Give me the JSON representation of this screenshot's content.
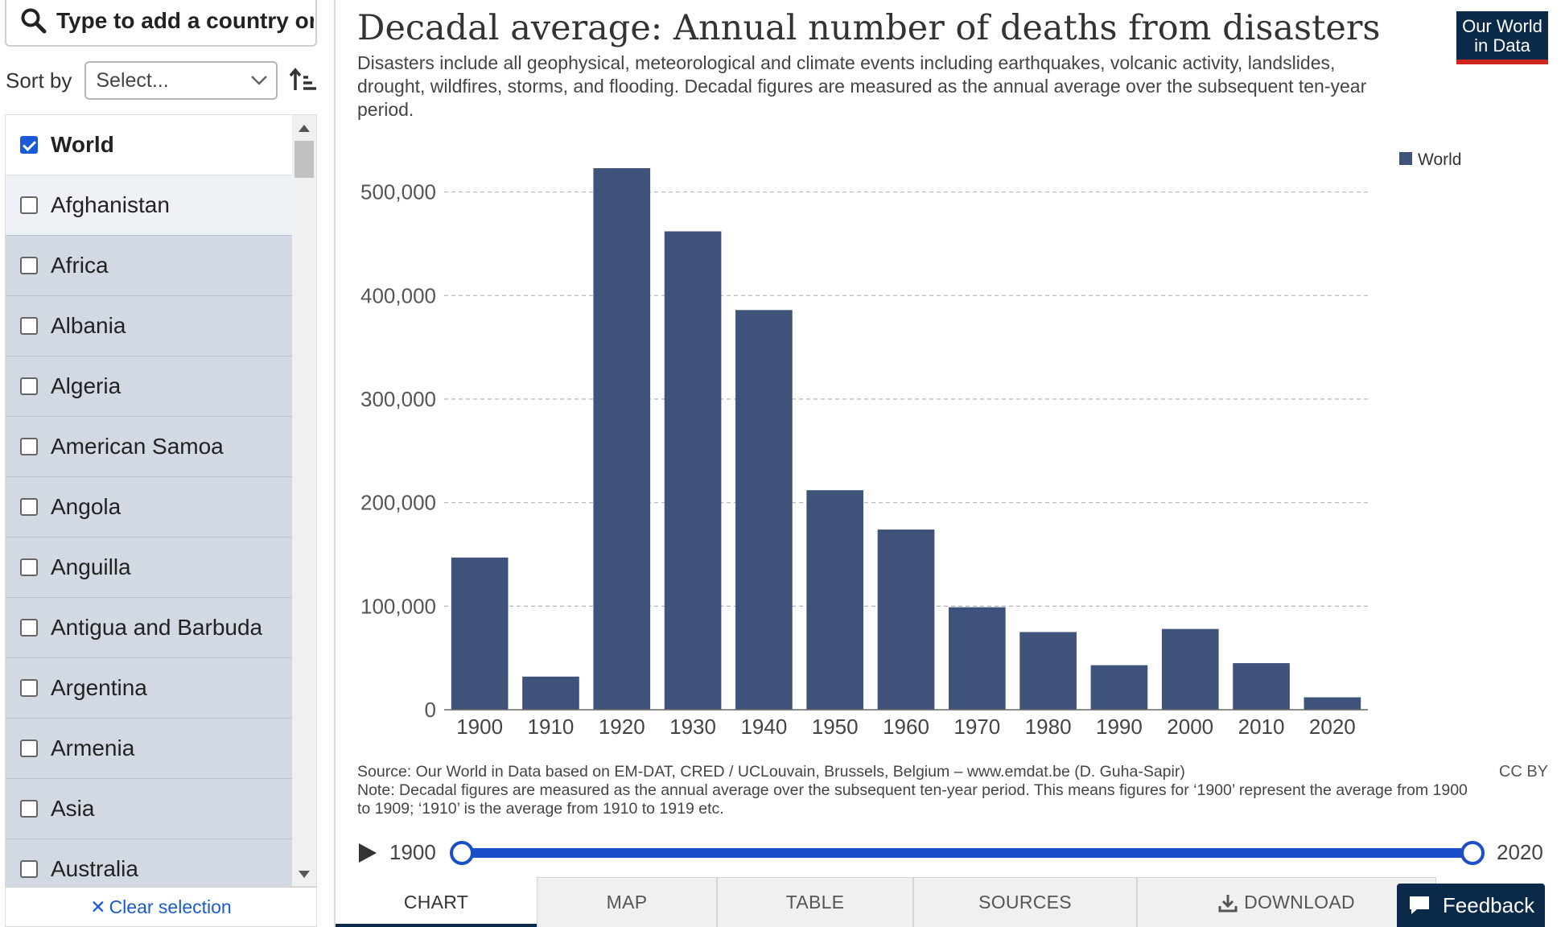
{
  "sidebar": {
    "search_placeholder": "Type to add a country or region...",
    "sort_label": "Sort by",
    "sort_select_value": "Select...",
    "clear_label": "Clear selection",
    "items": [
      {
        "label": "World",
        "checked": true
      },
      {
        "label": "Afghanistan",
        "checked": false
      },
      {
        "label": "Africa",
        "checked": false
      },
      {
        "label": "Albania",
        "checked": false
      },
      {
        "label": "Algeria",
        "checked": false
      },
      {
        "label": "American Samoa",
        "checked": false
      },
      {
        "label": "Angola",
        "checked": false
      },
      {
        "label": "Anguilla",
        "checked": false
      },
      {
        "label": "Antigua and Barbuda",
        "checked": false
      },
      {
        "label": "Argentina",
        "checked": false
      },
      {
        "label": "Armenia",
        "checked": false
      },
      {
        "label": "Asia",
        "checked": false
      },
      {
        "label": "Australia",
        "checked": false
      }
    ]
  },
  "header": {
    "title": "Decadal average: Annual number of deaths from disasters",
    "subtitle": "Disasters include all geophysical, meteorological and climate events including earthquakes, volcanic activity, landslides, drought, wildfires, storms, and flooding. Decadal figures are measured as the annual average over the subsequent ten-year period.",
    "logo_line1": "Our World",
    "logo_line2": "in Data"
  },
  "chart_data": {
    "type": "bar",
    "categories": [
      "1900",
      "1910",
      "1920",
      "1930",
      "1940",
      "1950",
      "1960",
      "1970",
      "1980",
      "1990",
      "2000",
      "2010",
      "2020"
    ],
    "series": [
      {
        "name": "World",
        "color": "#3f5279",
        "values": [
          147000,
          32000,
          523000,
          462000,
          386000,
          212000,
          174000,
          99000,
          75000,
          43000,
          78000,
          45000,
          12000
        ]
      }
    ],
    "yticks": [
      "0",
      "100,000",
      "200,000",
      "300,000",
      "400,000",
      "500,000"
    ],
    "ytick_values": [
      0,
      100000,
      200000,
      300000,
      400000,
      500000
    ],
    "ylim": [
      0,
      530000
    ],
    "grid": true,
    "legend_position": "top-right",
    "title": "Decadal average: Annual number of deaths from disasters",
    "xlabel": "",
    "ylabel": ""
  },
  "footer": {
    "source": "Source: Our World in Data based on EM-DAT, CRED / UCLouvain, Brussels, Belgium – www.emdat.be (D. Guha-Sapir)",
    "note": "Note: Decadal figures are measured as the annual average over the subsequent ten-year period. This means figures for ‘1900’ represent the average from 1900 to 1909; ‘1910’ is the average from 1910 to 1919 etc.",
    "license": "CC BY"
  },
  "timeline": {
    "start": "1900",
    "end": "2020"
  },
  "tabs": [
    {
      "label": "CHART",
      "active": true
    },
    {
      "label": "MAP",
      "active": false
    },
    {
      "label": "TABLE",
      "active": false
    },
    {
      "label": "SOURCES",
      "active": false
    },
    {
      "label": "DOWNLOAD",
      "active": false
    }
  ],
  "feedback_label": "Feedback"
}
